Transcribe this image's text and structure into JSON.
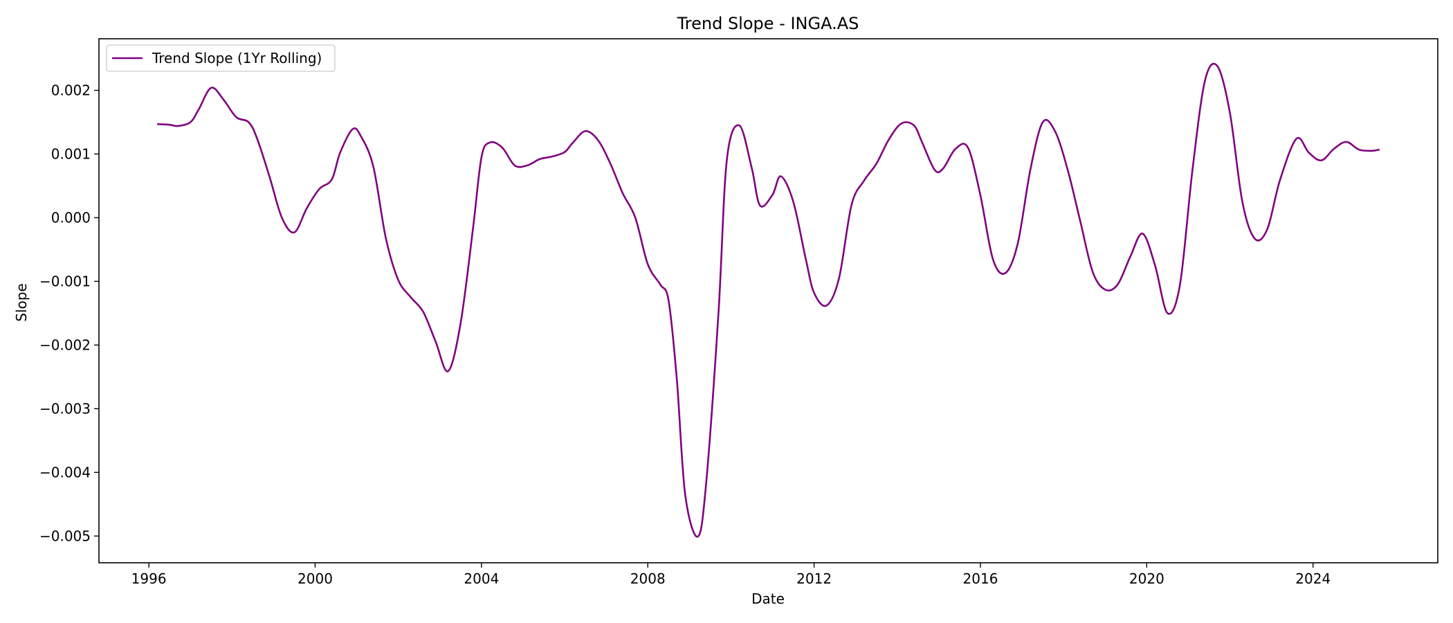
{
  "chart_data": {
    "type": "line",
    "title": "Trend Slope - INGA.AS",
    "xlabel": "Date",
    "ylabel": "Slope",
    "xlim": [
      1994.8,
      2027.0
    ],
    "ylim": [
      -0.00542,
      0.00281
    ],
    "xticks": [
      1996,
      2000,
      2004,
      2008,
      2012,
      2016,
      2020,
      2024
    ],
    "xtick_labels": [
      "1996",
      "2000",
      "2004",
      "2008",
      "2012",
      "2016",
      "2020",
      "2024"
    ],
    "yticks": [
      -0.005,
      -0.004,
      -0.003,
      -0.002,
      -0.001,
      0.0,
      0.001,
      0.002
    ],
    "ytick_labels": [
      "−0.005",
      "−0.004",
      "−0.003",
      "−0.002",
      "−0.001",
      "0.000",
      "0.001",
      "0.002"
    ],
    "grid": false,
    "legend_position": "top-left",
    "series": [
      {
        "name": "Trend Slope (1Yr Rolling)",
        "color": "#800080",
        "points": [
          [
            1996.2,
            0.00147
          ],
          [
            1996.5,
            0.00146
          ],
          [
            1996.7,
            0.00144
          ],
          [
            1997.0,
            0.0015
          ],
          [
            1997.2,
            0.0017
          ],
          [
            1997.5,
            0.00204
          ],
          [
            1997.8,
            0.00185
          ],
          [
            1998.1,
            0.00158
          ],
          [
            1998.4,
            0.0015
          ],
          [
            1998.6,
            0.00125
          ],
          [
            1998.9,
            0.00065
          ],
          [
            1999.2,
            0.0
          ],
          [
            1999.5,
            -0.00023
          ],
          [
            1999.8,
            0.00015
          ],
          [
            2000.1,
            0.00045
          ],
          [
            2000.4,
            0.0006
          ],
          [
            2000.6,
            0.00102
          ],
          [
            2000.9,
            0.00139
          ],
          [
            2001.1,
            0.00128
          ],
          [
            2001.4,
            0.0008
          ],
          [
            2001.7,
            -0.00032
          ],
          [
            2002.0,
            -0.00098
          ],
          [
            2002.3,
            -0.00125
          ],
          [
            2002.6,
            -0.00148
          ],
          [
            2002.9,
            -0.00195
          ],
          [
            2003.2,
            -0.00241
          ],
          [
            2003.5,
            -0.00165
          ],
          [
            2003.8,
            -0.00015
          ],
          [
            2004.0,
            0.00095
          ],
          [
            2004.2,
            0.00118
          ],
          [
            2004.5,
            0.0011
          ],
          [
            2004.8,
            0.00082
          ],
          [
            2005.1,
            0.00082
          ],
          [
            2005.4,
            0.00092
          ],
          [
            2005.7,
            0.00096
          ],
          [
            2006.0,
            0.00103
          ],
          [
            2006.2,
            0.00118
          ],
          [
            2006.5,
            0.00136
          ],
          [
            2006.8,
            0.00122
          ],
          [
            2007.1,
            0.00085
          ],
          [
            2007.4,
            0.00038
          ],
          [
            2007.7,
            0.0
          ],
          [
            2008.0,
            -0.00073
          ],
          [
            2008.3,
            -0.00105
          ],
          [
            2008.5,
            -0.0013
          ],
          [
            2008.7,
            -0.00255
          ],
          [
            2008.9,
            -0.00435
          ],
          [
            2009.2,
            -0.00501
          ],
          [
            2009.4,
            -0.0042
          ],
          [
            2009.7,
            -0.0015
          ],
          [
            2009.9,
            0.0009
          ],
          [
            2010.2,
            0.00145
          ],
          [
            2010.5,
            0.00078
          ],
          [
            2010.7,
            0.00019
          ],
          [
            2011.0,
            0.00036
          ],
          [
            2011.2,
            0.00065
          ],
          [
            2011.5,
            0.00025
          ],
          [
            2011.8,
            -0.00065
          ],
          [
            2012.0,
            -0.00118
          ],
          [
            2012.3,
            -0.00138
          ],
          [
            2012.6,
            -0.00095
          ],
          [
            2012.9,
            0.0002
          ],
          [
            2013.2,
            0.00058
          ],
          [
            2013.5,
            0.00085
          ],
          [
            2013.8,
            0.00123
          ],
          [
            2014.1,
            0.00148
          ],
          [
            2014.4,
            0.00145
          ],
          [
            2014.6,
            0.00118
          ],
          [
            2014.9,
            0.00075
          ],
          [
            2015.1,
            0.00077
          ],
          [
            2015.4,
            0.00108
          ],
          [
            2015.7,
            0.0011
          ],
          [
            2016.0,
            0.00035
          ],
          [
            2016.3,
            -0.00065
          ],
          [
            2016.6,
            -0.00087
          ],
          [
            2016.9,
            -0.0004
          ],
          [
            2017.2,
            0.00075
          ],
          [
            2017.5,
            0.0015
          ],
          [
            2017.8,
            0.00135
          ],
          [
            2018.1,
            0.00075
          ],
          [
            2018.4,
            -5e-05
          ],
          [
            2018.7,
            -0.00085
          ],
          [
            2019.0,
            -0.00113
          ],
          [
            2019.3,
            -0.00105
          ],
          [
            2019.6,
            -0.00062
          ],
          [
            2019.9,
            -0.00025
          ],
          [
            2020.2,
            -0.00075
          ],
          [
            2020.5,
            -0.0015
          ],
          [
            2020.8,
            -0.00105
          ],
          [
            2021.1,
            0.00075
          ],
          [
            2021.4,
            0.00215
          ],
          [
            2021.7,
            0.00238
          ],
          [
            2022.0,
            0.00165
          ],
          [
            2022.3,
            0.00025
          ],
          [
            2022.6,
            -0.00033
          ],
          [
            2022.9,
            -0.00018
          ],
          [
            2023.2,
            0.00058
          ],
          [
            2023.6,
            0.00124
          ],
          [
            2023.9,
            0.00102
          ],
          [
            2024.2,
            0.0009
          ],
          [
            2024.5,
            0.00108
          ],
          [
            2024.8,
            0.00119
          ],
          [
            2025.1,
            0.00107
          ],
          [
            2025.4,
            0.00105
          ],
          [
            2025.6,
            0.00107
          ]
        ]
      }
    ]
  }
}
